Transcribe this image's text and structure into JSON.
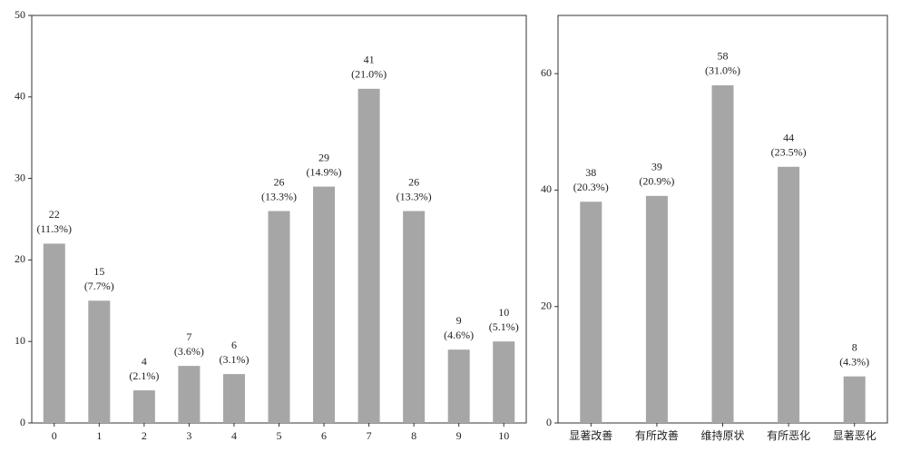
{
  "chart_data": [
    {
      "type": "bar",
      "categories": [
        "0",
        "1",
        "2",
        "3",
        "4",
        "5",
        "6",
        "7",
        "8",
        "9",
        "10"
      ],
      "values": [
        22,
        15,
        4,
        7,
        6,
        26,
        29,
        41,
        26,
        9,
        10
      ],
      "percent_labels": [
        "(11.3%)",
        "(7.7%)",
        "(2.1%)",
        "(3.6%)",
        "(3.1%)",
        "(13.3%)",
        "(14.9%)",
        "(21.0%)",
        "(13.3%)",
        "(4.6%)",
        "(5.1%)"
      ],
      "color": "#a6a6a6",
      "ylim": [
        0,
        50
      ],
      "yticks": [
        0,
        10,
        20,
        30,
        40,
        50
      ]
    },
    {
      "type": "bar",
      "categories": [
        "显著改善",
        "有所改善",
        "维持原状",
        "有所恶化",
        "显著恶化"
      ],
      "values": [
        38,
        39,
        58,
        44,
        8
      ],
      "percent_labels": [
        "(20.3%)",
        "(20.9%)",
        "(31.0%)",
        "(23.5%)",
        "(4.3%)"
      ],
      "color": "#a6a6a6",
      "ylim": [
        0,
        70
      ],
      "yticks": [
        0,
        20,
        40,
        60
      ]
    }
  ]
}
